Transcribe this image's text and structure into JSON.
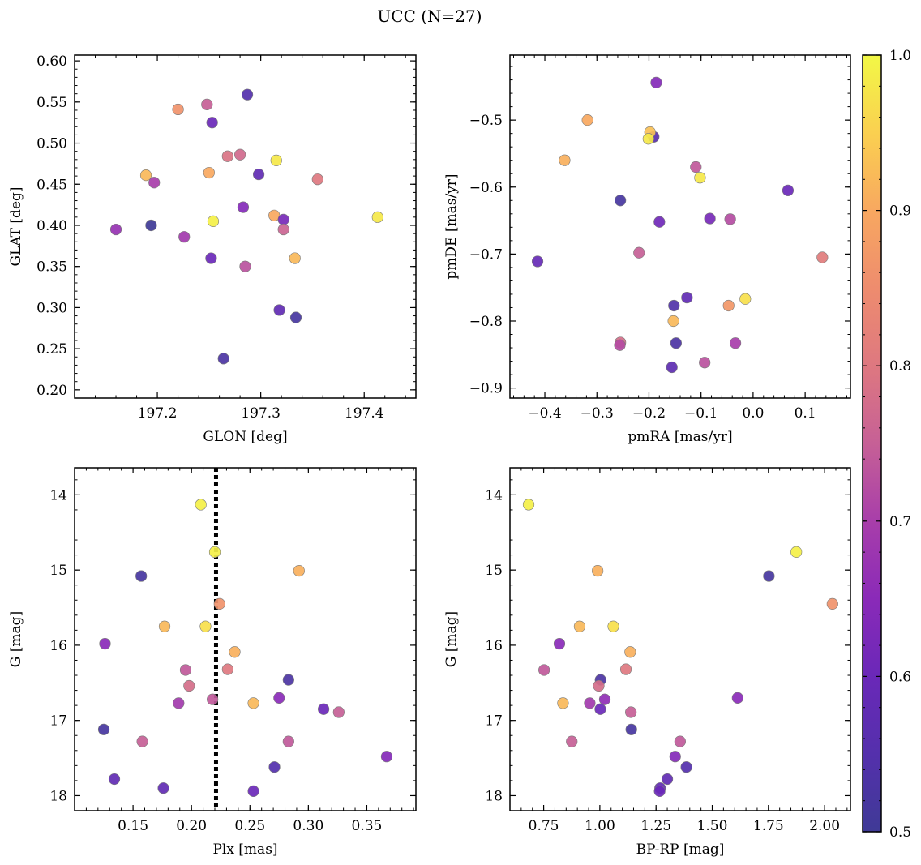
{
  "figure": {
    "title": "UCC (N=27)"
  },
  "colormap": {
    "name": "plasma",
    "range": [
      0.5,
      1.0
    ],
    "ticks": [
      0.5,
      0.6,
      0.7,
      0.8,
      0.9,
      1.0
    ],
    "tick_labels": [
      "0.5",
      "0.6",
      "0.7",
      "0.8",
      "0.9",
      "1.0"
    ]
  },
  "chart_data": [
    {
      "type": "scatter",
      "panel": "top-left",
      "xlabel": "GLON [deg]",
      "ylabel": "GLAT [deg]",
      "xlim": [
        197.12,
        197.45
      ],
      "ylim": [
        0.19,
        0.607
      ],
      "xticks": [
        197.2,
        197.3,
        197.4
      ],
      "xtick_labels": [
        "197.2",
        "197.3",
        "197.4"
      ],
      "yticks": [
        0.2,
        0.25,
        0.3,
        0.35,
        0.4,
        0.45,
        0.5,
        0.55,
        0.6
      ],
      "ytick_labels": [
        "0.20",
        "0.25",
        "0.30",
        "0.35",
        "0.40",
        "0.45",
        "0.50",
        "0.55",
        "0.60"
      ],
      "points": [
        {
          "x": 197.22,
          "y": 0.541,
          "c": 0.86
        },
        {
          "x": 197.248,
          "y": 0.547,
          "c": 0.75
        },
        {
          "x": 197.287,
          "y": 0.559,
          "c": 0.55
        },
        {
          "x": 197.253,
          "y": 0.525,
          "c": 0.6
        },
        {
          "x": 197.189,
          "y": 0.461,
          "c": 0.92
        },
        {
          "x": 197.197,
          "y": 0.452,
          "c": 0.7
        },
        {
          "x": 197.25,
          "y": 0.464,
          "c": 0.9
        },
        {
          "x": 197.268,
          "y": 0.484,
          "c": 0.79
        },
        {
          "x": 197.28,
          "y": 0.486,
          "c": 0.77
        },
        {
          "x": 197.298,
          "y": 0.462,
          "c": 0.58
        },
        {
          "x": 197.315,
          "y": 0.479,
          "c": 0.98
        },
        {
          "x": 197.355,
          "y": 0.456,
          "c": 0.8
        },
        {
          "x": 197.16,
          "y": 0.395,
          "c": 0.67
        },
        {
          "x": 197.194,
          "y": 0.4,
          "c": 0.5
        },
        {
          "x": 197.226,
          "y": 0.386,
          "c": 0.69
        },
        {
          "x": 197.254,
          "y": 0.405,
          "c": 0.99
        },
        {
          "x": 197.283,
          "y": 0.422,
          "c": 0.64
        },
        {
          "x": 197.313,
          "y": 0.412,
          "c": 0.9
        },
        {
          "x": 197.322,
          "y": 0.407,
          "c": 0.62
        },
        {
          "x": 197.322,
          "y": 0.395,
          "c": 0.76
        },
        {
          "x": 197.413,
          "y": 0.41,
          "c": 0.98
        },
        {
          "x": 197.252,
          "y": 0.36,
          "c": 0.6
        },
        {
          "x": 197.285,
          "y": 0.35,
          "c": 0.73
        },
        {
          "x": 197.333,
          "y": 0.36,
          "c": 0.92
        },
        {
          "x": 197.318,
          "y": 0.297,
          "c": 0.58
        },
        {
          "x": 197.334,
          "y": 0.288,
          "c": 0.52
        },
        {
          "x": 197.264,
          "y": 0.238,
          "c": 0.53
        }
      ]
    },
    {
      "type": "scatter",
      "panel": "top-right",
      "xlabel": "pmRA [mas/yr]",
      "ylabel": "pmDE [mas/yr]",
      "xlim": [
        -0.467,
        0.187
      ],
      "ylim": [
        -0.915,
        -0.403
      ],
      "xticks": [
        -0.4,
        -0.3,
        -0.2,
        -0.1,
        0.0,
        0.1
      ],
      "xtick_labels": [
        "−0.4",
        "−0.3",
        "−0.2",
        "−0.1",
        "0.0",
        "0.1"
      ],
      "yticks": [
        -0.9,
        -0.8,
        -0.7,
        -0.6,
        -0.5
      ],
      "ytick_labels": [
        "−0.9",
        "−0.8",
        "−0.7",
        "−0.6",
        "−0.5"
      ],
      "points": [
        {
          "x": -0.186,
          "y": -0.444,
          "c": 0.64
        },
        {
          "x": -0.318,
          "y": -0.5,
          "c": 0.9
        },
        {
          "x": -0.191,
          "y": -0.525,
          "c": 0.56
        },
        {
          "x": -0.198,
          "y": -0.518,
          "c": 0.93
        },
        {
          "x": -0.201,
          "y": -0.528,
          "c": 0.98
        },
        {
          "x": -0.362,
          "y": -0.56,
          "c": 0.91
        },
        {
          "x": -0.11,
          "y": -0.57,
          "c": 0.74
        },
        {
          "x": -0.102,
          "y": -0.586,
          "c": 0.98
        },
        {
          "x": 0.067,
          "y": -0.605,
          "c": 0.6
        },
        {
          "x": -0.255,
          "y": -0.62,
          "c": 0.52
        },
        {
          "x": -0.18,
          "y": -0.652,
          "c": 0.61
        },
        {
          "x": -0.083,
          "y": -0.647,
          "c": 0.62
        },
        {
          "x": -0.044,
          "y": -0.648,
          "c": 0.72
        },
        {
          "x": -0.414,
          "y": -0.711,
          "c": 0.59
        },
        {
          "x": -0.219,
          "y": -0.698,
          "c": 0.75
        },
        {
          "x": 0.133,
          "y": -0.705,
          "c": 0.81
        },
        {
          "x": -0.127,
          "y": -0.765,
          "c": 0.58
        },
        {
          "x": -0.152,
          "y": -0.777,
          "c": 0.54
        },
        {
          "x": -0.047,
          "y": -0.777,
          "c": 0.87
        },
        {
          "x": -0.015,
          "y": -0.767,
          "c": 0.97
        },
        {
          "x": -0.153,
          "y": -0.8,
          "c": 0.92
        },
        {
          "x": -0.255,
          "y": -0.832,
          "c": 0.78
        },
        {
          "x": -0.256,
          "y": -0.836,
          "c": 0.72
        },
        {
          "x": -0.148,
          "y": -0.833,
          "c": 0.53
        },
        {
          "x": -0.034,
          "y": -0.833,
          "c": 0.7
        },
        {
          "x": -0.156,
          "y": -0.869,
          "c": 0.57
        },
        {
          "x": -0.093,
          "y": -0.862,
          "c": 0.73
        }
      ]
    },
    {
      "type": "scatter",
      "panel": "bottom-left",
      "xlabel": "Plx [mas]",
      "ylabel": "G [mag]",
      "xlim": [
        0.1,
        0.392
      ],
      "ylim": [
        18.2,
        13.64
      ],
      "y_inverted": true,
      "xticks": [
        0.15,
        0.2,
        0.25,
        0.3,
        0.35
      ],
      "xtick_labels": [
        "0.15",
        "0.20",
        "0.25",
        "0.30",
        "0.35"
      ],
      "yticks": [
        14,
        15,
        16,
        17,
        18
      ],
      "ytick_labels": [
        "14",
        "15",
        "16",
        "17",
        "18"
      ],
      "vline": {
        "x": 0.221,
        "style": "dotted"
      },
      "points": [
        {
          "x": 0.208,
          "y": 14.13,
          "c": 0.99
        },
        {
          "x": 0.22,
          "y": 14.76,
          "c": 0.99
        },
        {
          "x": 0.157,
          "y": 15.08,
          "c": 0.52
        },
        {
          "x": 0.292,
          "y": 15.01,
          "c": 0.91
        },
        {
          "x": 0.224,
          "y": 15.45,
          "c": 0.86
        },
        {
          "x": 0.177,
          "y": 15.75,
          "c": 0.92
        },
        {
          "x": 0.212,
          "y": 15.75,
          "c": 0.97
        },
        {
          "x": 0.126,
          "y": 15.98,
          "c": 0.65
        },
        {
          "x": 0.237,
          "y": 16.09,
          "c": 0.91
        },
        {
          "x": 0.195,
          "y": 16.33,
          "c": 0.74
        },
        {
          "x": 0.231,
          "y": 16.32,
          "c": 0.8
        },
        {
          "x": 0.283,
          "y": 16.46,
          "c": 0.53
        },
        {
          "x": 0.198,
          "y": 16.54,
          "c": 0.78
        },
        {
          "x": 0.218,
          "y": 16.72,
          "c": 0.74
        },
        {
          "x": 0.189,
          "y": 16.77,
          "c": 0.69
        },
        {
          "x": 0.275,
          "y": 16.7,
          "c": 0.65
        },
        {
          "x": 0.253,
          "y": 16.77,
          "c": 0.92
        },
        {
          "x": 0.313,
          "y": 16.85,
          "c": 0.6
        },
        {
          "x": 0.326,
          "y": 16.89,
          "c": 0.75
        },
        {
          "x": 0.125,
          "y": 17.12,
          "c": 0.52
        },
        {
          "x": 0.158,
          "y": 17.28,
          "c": 0.75
        },
        {
          "x": 0.283,
          "y": 17.28,
          "c": 0.74
        },
        {
          "x": 0.367,
          "y": 17.48,
          "c": 0.64
        },
        {
          "x": 0.271,
          "y": 17.62,
          "c": 0.55
        },
        {
          "x": 0.134,
          "y": 17.78,
          "c": 0.58
        },
        {
          "x": 0.176,
          "y": 17.9,
          "c": 0.58
        },
        {
          "x": 0.253,
          "y": 17.94,
          "c": 0.6
        }
      ]
    },
    {
      "type": "scatter",
      "panel": "bottom-right",
      "xlabel": "BP-RP [mag]",
      "ylabel": "G [mag]",
      "xlim": [
        0.6,
        2.115
      ],
      "ylim": [
        18.2,
        13.64
      ],
      "y_inverted": true,
      "xticks": [
        0.75,
        1.0,
        1.25,
        1.5,
        1.75,
        2.0
      ],
      "xtick_labels": [
        "0.75",
        "1.00",
        "1.25",
        "1.50",
        "1.75",
        "2.00"
      ],
      "yticks": [
        14,
        15,
        16,
        17,
        18
      ],
      "ytick_labels": [
        "14",
        "15",
        "16",
        "17",
        "18"
      ],
      "points": [
        {
          "x": 0.683,
          "y": 14.13,
          "c": 0.99
        },
        {
          "x": 1.874,
          "y": 14.76,
          "c": 0.99
        },
        {
          "x": 0.99,
          "y": 15.01,
          "c": 0.91
        },
        {
          "x": 1.752,
          "y": 15.08,
          "c": 0.52
        },
        {
          "x": 2.035,
          "y": 15.45,
          "c": 0.86
        },
        {
          "x": 0.91,
          "y": 15.75,
          "c": 0.92
        },
        {
          "x": 1.06,
          "y": 15.75,
          "c": 0.97
        },
        {
          "x": 0.82,
          "y": 15.98,
          "c": 0.65
        },
        {
          "x": 1.135,
          "y": 16.09,
          "c": 0.91
        },
        {
          "x": 0.752,
          "y": 16.33,
          "c": 0.74
        },
        {
          "x": 1.116,
          "y": 16.32,
          "c": 0.8
        },
        {
          "x": 1.003,
          "y": 16.46,
          "c": 0.53
        },
        {
          "x": 0.995,
          "y": 16.54,
          "c": 0.78
        },
        {
          "x": 1.022,
          "y": 16.72,
          "c": 0.66
        },
        {
          "x": 0.955,
          "y": 16.77,
          "c": 0.69
        },
        {
          "x": 0.836,
          "y": 16.77,
          "c": 0.92
        },
        {
          "x": 1.613,
          "y": 16.7,
          "c": 0.65
        },
        {
          "x": 1.002,
          "y": 16.85,
          "c": 0.6
        },
        {
          "x": 1.138,
          "y": 16.89,
          "c": 0.75
        },
        {
          "x": 1.14,
          "y": 17.12,
          "c": 0.52
        },
        {
          "x": 0.875,
          "y": 17.28,
          "c": 0.75
        },
        {
          "x": 1.357,
          "y": 17.28,
          "c": 0.74
        },
        {
          "x": 1.335,
          "y": 17.48,
          "c": 0.64
        },
        {
          "x": 1.385,
          "y": 17.62,
          "c": 0.55
        },
        {
          "x": 1.3,
          "y": 17.78,
          "c": 0.58
        },
        {
          "x": 1.268,
          "y": 17.9,
          "c": 0.58
        },
        {
          "x": 1.266,
          "y": 17.94,
          "c": 0.6
        }
      ]
    }
  ]
}
